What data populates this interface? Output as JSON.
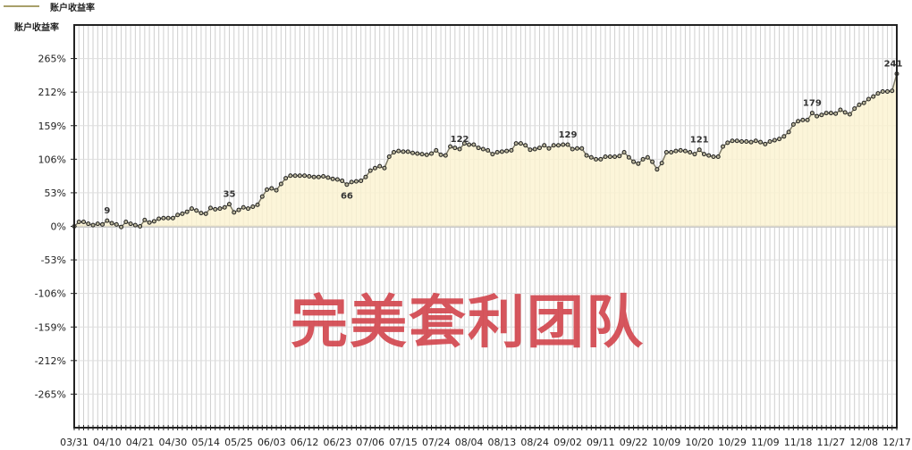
{
  "legend": {
    "label": "账户收益率",
    "color": "#a89f6a"
  },
  "watermark": "完美套利团队",
  "chart_data": {
    "type": "line",
    "title": "",
    "ylabel": "账户收益率",
    "xlabel": "",
    "y_unit": "%",
    "ylim": [
      -318,
      318
    ],
    "yticks": [
      265,
      212,
      159,
      106,
      53,
      0,
      -53,
      -106,
      -159,
      -212,
      -265
    ],
    "ytick_labels": [
      "265%",
      "212%",
      "159%",
      "106%",
      "53%",
      "0%",
      "-53%",
      "-106%",
      "-159%",
      "-212%",
      "-265%"
    ],
    "x_tick_labels": [
      "03/31",
      "04/10",
      "04/21",
      "04/30",
      "05/14",
      "05/25",
      "06/03",
      "06/12",
      "06/23",
      "07/06",
      "07/15",
      "07/24",
      "08/04",
      "08/13",
      "08/24",
      "09/02",
      "09/11",
      "09/22",
      "10/09",
      "10/20",
      "10/29",
      "11/09",
      "11/18",
      "11/27",
      "12/08",
      "12/17"
    ],
    "grid": true,
    "legend_position": "top-left",
    "colors": {
      "line": "#7d7a66",
      "marker": "#222222",
      "area": "#fbf3cf",
      "watermark": "#d2444c"
    },
    "series": [
      {
        "name": "账户收益率",
        "values": [
          0,
          7,
          7,
          4,
          2,
          4,
          3,
          9,
          5,
          3,
          -1,
          7,
          4,
          2,
          0,
          10,
          6,
          8,
          12,
          13,
          13,
          13,
          18,
          20,
          23,
          28,
          25,
          21,
          20,
          29,
          27,
          28,
          30,
          35,
          22,
          26,
          30,
          28,
          31,
          34,
          47,
          58,
          60,
          57,
          67,
          76,
          80,
          80,
          80,
          80,
          79,
          78,
          78,
          79,
          77,
          75,
          74,
          72,
          66,
          70,
          71,
          72,
          78,
          88,
          92,
          95,
          92,
          110,
          117,
          119,
          118,
          118,
          116,
          115,
          114,
          113,
          115,
          120,
          113,
          112,
          126,
          124,
          122,
          131,
          129,
          129,
          124,
          122,
          120,
          114,
          117,
          118,
          119,
          120,
          131,
          131,
          128,
          121,
          122,
          124,
          128,
          123,
          128,
          128,
          129,
          129,
          122,
          123,
          123,
          112,
          109,
          106,
          106,
          110,
          110,
          110,
          111,
          117,
          109,
          102,
          99,
          106,
          109,
          102,
          90,
          100,
          117,
          117,
          119,
          120,
          119,
          117,
          114,
          121,
          114,
          112,
          110,
          110,
          126,
          132,
          135,
          135,
          134,
          134,
          133,
          135,
          133,
          130,
          134,
          136,
          138,
          142,
          149,
          161,
          166,
          168,
          168,
          179,
          174,
          176,
          179,
          179,
          178,
          184,
          180,
          177,
          186,
          192,
          195,
          201,
          205,
          210,
          213,
          213,
          214,
          241
        ]
      }
    ],
    "annotations": [
      {
        "point": 7,
        "label": "9"
      },
      {
        "point": 33,
        "label": "35"
      },
      {
        "point": 58,
        "label": "66"
      },
      {
        "point": 82,
        "label": "122"
      },
      {
        "point": 105,
        "label": "129"
      },
      {
        "point": 133,
        "label": "121"
      },
      {
        "point": 157,
        "label": "179"
      },
      {
        "point": 175,
        "label": "241"
      }
    ]
  }
}
